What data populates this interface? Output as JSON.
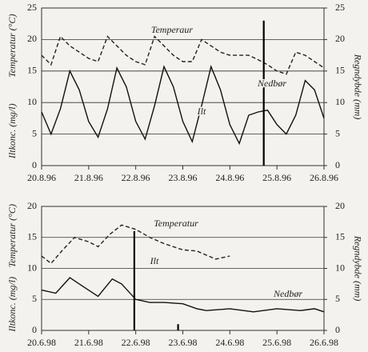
{
  "chart_data": [
    {
      "type": "line",
      "xlim": [
        0,
        6
      ],
      "xticks": [
        {
          "value": 0,
          "label": "20.8.96"
        },
        {
          "value": 1,
          "label": "21.8.96"
        },
        {
          "value": 2,
          "label": "22.8.96"
        },
        {
          "value": 3,
          "label": "23.8.96"
        },
        {
          "value": 4,
          "label": "24.8.96"
        },
        {
          "value": 5,
          "label": "25.8.96"
        },
        {
          "value": 6,
          "label": "26.8.96"
        }
      ],
      "ylim": [
        0,
        25
      ],
      "yticks": [
        0,
        5,
        10,
        15,
        20,
        25
      ],
      "y2lim": [
        0,
        25
      ],
      "y2ticks": [
        0,
        5,
        10,
        15,
        20,
        25
      ],
      "ylabel": [
        "Iltkonc. (mg/l)",
        "Temperatur (°C)"
      ],
      "y2label": "Regndybde (mm)",
      "grid": true,
      "series": [
        {
          "name": "Temperaur",
          "style": "dashed",
          "color": "#222",
          "x": [
            0,
            0.2,
            0.4,
            0.6,
            0.8,
            1,
            1.2,
            1.4,
            1.6,
            1.8,
            2,
            2.2,
            2.4,
            2.6,
            2.8,
            3,
            3.2,
            3.4,
            3.6,
            3.8,
            4,
            4.2,
            4.4,
            4.6,
            4.8,
            5,
            5.2,
            5.4,
            5.6,
            5.8,
            6
          ],
          "values": [
            17.5,
            16,
            20.5,
            19,
            18,
            17,
            16.5,
            20.5,
            19,
            17.5,
            16.5,
            16,
            20.5,
            19,
            17.5,
            16.5,
            16.5,
            20,
            19,
            18,
            17.5,
            17.5,
            17.5,
            16.8,
            16,
            15,
            14.5,
            18,
            17.5,
            16.5,
            15.5
          ]
        },
        {
          "name": "Ilt",
          "style": "solid",
          "color": "#111",
          "x": [
            0,
            0.2,
            0.4,
            0.6,
            0.8,
            1,
            1.2,
            1.4,
            1.6,
            1.8,
            2,
            2.2,
            2.4,
            2.6,
            2.8,
            3,
            3.2,
            3.4,
            3.6,
            3.8,
            4,
            4.2,
            4.4,
            4.6,
            4.8,
            5,
            5.2,
            5.4,
            5.6,
            5.8,
            6
          ],
          "values": [
            8.5,
            5,
            9,
            15,
            12,
            7,
            4.5,
            9,
            15.5,
            12.5,
            7,
            4.2,
            9.5,
            15.7,
            12.5,
            7,
            3.8,
            9.5,
            15.7,
            12,
            6.5,
            3.5,
            8,
            8.5,
            8.8,
            6.5,
            5,
            8,
            13.5,
            12,
            7.5
          ]
        },
        {
          "name": "Nedbør",
          "style": "spike",
          "axis": "y2",
          "color": "#000",
          "x": [
            4.72
          ],
          "values": [
            23
          ]
        }
      ]
    },
    {
      "type": "line",
      "xlim": [
        0,
        6
      ],
      "xticks": [
        {
          "value": 0,
          "label": "20.6.98"
        },
        {
          "value": 1,
          "label": "21.6.98"
        },
        {
          "value": 2,
          "label": "22.6.98"
        },
        {
          "value": 3,
          "label": "23.6.98"
        },
        {
          "value": 4,
          "label": "24.6.98"
        },
        {
          "value": 5,
          "label": "25.6.98"
        },
        {
          "value": 6,
          "label": "26.6.98"
        }
      ],
      "ylim": [
        0,
        20
      ],
      "yticks": [
        0,
        5,
        10,
        15,
        20
      ],
      "y2lim": [
        0,
        20
      ],
      "y2ticks": [
        0,
        5,
        10,
        15,
        20
      ],
      "ylabel": [
        "Iltkonc. (mg/l)",
        "Temperatur (°C)"
      ],
      "y2label": "Regndybde (mm)",
      "grid": true,
      "series": [
        {
          "name": "Temperatur",
          "style": "dashed",
          "color": "#222",
          "x": [
            0,
            0.2,
            0.45,
            0.7,
            1,
            1.2,
            1.45,
            1.7,
            2,
            2.3,
            2.6,
            3,
            3.3,
            3.7,
            4
          ],
          "values": [
            12,
            10.8,
            13,
            15,
            14.3,
            13.5,
            15.5,
            17,
            16.3,
            15,
            14,
            13,
            12.8,
            11.5,
            12
          ]
        },
        {
          "name": "Ilt",
          "style": "solid",
          "color": "#111",
          "x": [
            0,
            0.3,
            0.6,
            0.9,
            1.2,
            1.5,
            1.7,
            2,
            2.3,
            2.6,
            3,
            3.3,
            3.5,
            4,
            4.5,
            5,
            5.5,
            5.8,
            6
          ],
          "values": [
            6.5,
            6,
            8.5,
            7,
            5.5,
            8.3,
            7.5,
            5,
            4.5,
            4.5,
            4.3,
            3.5,
            3.2,
            3.5,
            3,
            3.5,
            3.2,
            3.5,
            3
          ]
        },
        {
          "name": "Nedbør",
          "style": "spike",
          "axis": "y2",
          "color": "#000",
          "x": [
            1.97,
            2.9
          ],
          "values": [
            16,
            1
          ]
        }
      ]
    }
  ]
}
